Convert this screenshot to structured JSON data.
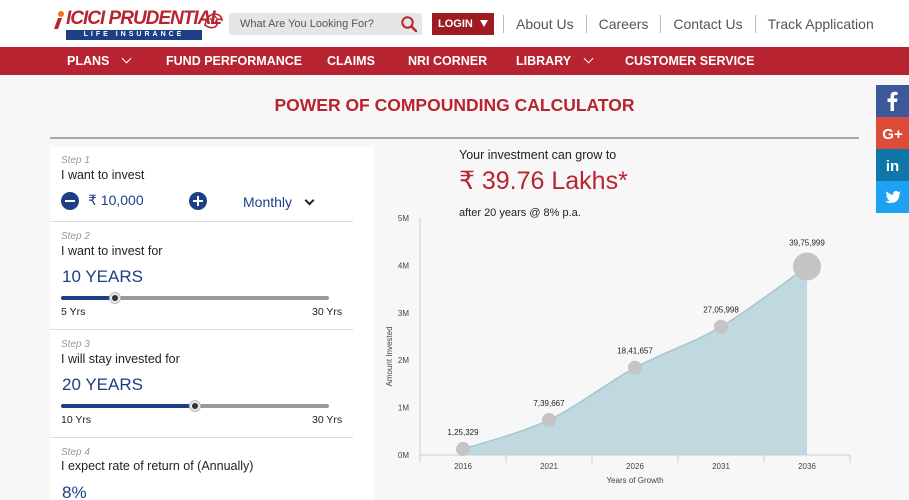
{
  "header": {
    "brand_name": "ICICI PRUDENTIAL",
    "brand_sub": "LIFE INSURANCE",
    "search_placeholder": "What Are You Looking For?",
    "login_label": "LOGIN",
    "links": [
      "About Us",
      "Careers",
      "Contact Us",
      "Track Application"
    ]
  },
  "nav": {
    "items": [
      "PLANS",
      "FUND PERFORMANCE",
      "CLAIMS",
      "NRI CORNER",
      "LIBRARY",
      "CUSTOMER SERVICE"
    ]
  },
  "calculator": {
    "title": "POWER OF COMPOUNDING CALCULATOR",
    "step1": {
      "label": "Step 1",
      "question": "I want to invest",
      "amount": "₹ 10,000",
      "frequency": "Monthly"
    },
    "step2": {
      "label": "Step 2",
      "question": "I want to invest for",
      "value": "10 YEARS",
      "min": "5 Yrs",
      "max": "30 Yrs",
      "fraction": 0.2
    },
    "step3": {
      "label": "Step 3",
      "question": "I will stay invested for",
      "value": "20 YEARS",
      "min": "10 Yrs",
      "max": "30 Yrs",
      "fraction": 0.5
    },
    "step4": {
      "label": "Step 4",
      "question": "I expect rate of return of (Annually)",
      "value": "8%"
    }
  },
  "result": {
    "headline": "Your investment can grow to",
    "value": "₹ 39.76 Lakhs*",
    "sub": "after 20 years @ 8% p.a."
  },
  "chart_data": {
    "type": "area",
    "x": [
      "2016",
      "2021",
      "2026",
      "2031",
      "2036"
    ],
    "values": [
      125329,
      739667,
      1841657,
      2705998,
      3975999
    ],
    "data_labels": [
      "1,25,329",
      "7,39,667",
      "18,41,657",
      "27,05,998",
      "39,75,999"
    ],
    "y_ticks": [
      "0M",
      "1M",
      "2M",
      "3M",
      "4M",
      "5M"
    ],
    "ylim": [
      0,
      5000000
    ],
    "xlabel": "Years of Growth",
    "ylabel": "Amount Invested",
    "colors": {
      "area": "#b9d4dd",
      "line": "#a7c6d0",
      "marker": "#c4c4c4"
    }
  },
  "social": {
    "items": [
      {
        "name": "facebook",
        "glyph": "f",
        "color": "#3b5998"
      },
      {
        "name": "google-plus",
        "glyph": "G+",
        "color": "#dd4b39"
      },
      {
        "name": "linkedin",
        "glyph": "in",
        "color": "#0e76a8"
      },
      {
        "name": "twitter",
        "glyph": "",
        "color": "#1da1f2"
      }
    ]
  }
}
